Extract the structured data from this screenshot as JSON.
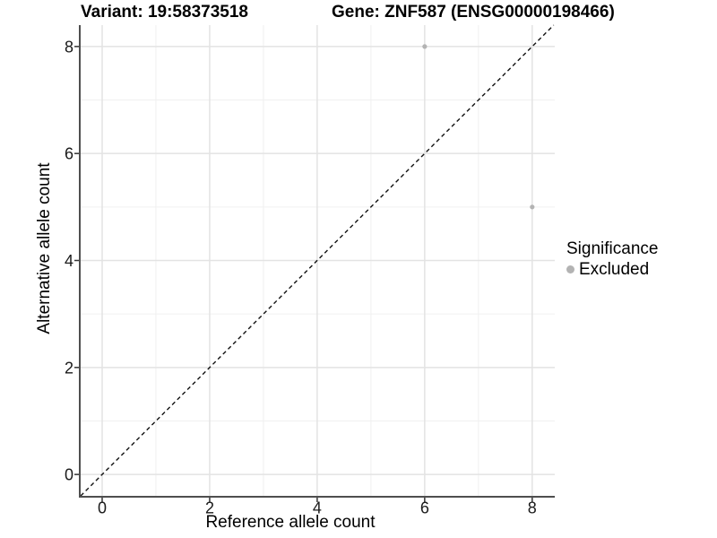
{
  "title": {
    "variant": "Variant: 19:58373518",
    "gene": "Gene: ZNF587 (ENSG00000198466)"
  },
  "chart_data": {
    "type": "scatter",
    "title": "Variant: 19:58373518   Gene: ZNF587 (ENSG00000198466)",
    "xlabel": "Reference allele count",
    "ylabel": "Alternative allele count",
    "xlim": [
      -0.4,
      8.42
    ],
    "ylim": [
      -0.4,
      8.4
    ],
    "xticks": [
      0,
      2,
      4,
      6,
      8
    ],
    "yticks": [
      0,
      2,
      4,
      6,
      8
    ],
    "xminor": [
      1,
      3,
      5,
      7
    ],
    "yminor": [
      1,
      3,
      5,
      7
    ],
    "grid": true,
    "series": [
      {
        "name": "Excluded",
        "color": "#b3b3b3",
        "points": [
          {
            "x": 6,
            "y": 8
          },
          {
            "x": 8,
            "y": 5
          }
        ]
      }
    ],
    "reference_line": {
      "type": "identity",
      "style": "dashed",
      "color": "#111111"
    },
    "legend": {
      "position": "right",
      "title": "Significance",
      "items": [
        {
          "label": "Excluded",
          "color": "#b3b3b3"
        }
      ]
    }
  },
  "colors": {
    "background": "#ffffff",
    "point": "#b3b3b3",
    "grid_major": "#e3e3e3",
    "grid_minor": "#f0f0f0",
    "axis_line": "#4f4f4f",
    "tick": "#333333",
    "tick_label": "#1a1a1a",
    "ref_line": "#111111",
    "title_text": "#000000"
  }
}
